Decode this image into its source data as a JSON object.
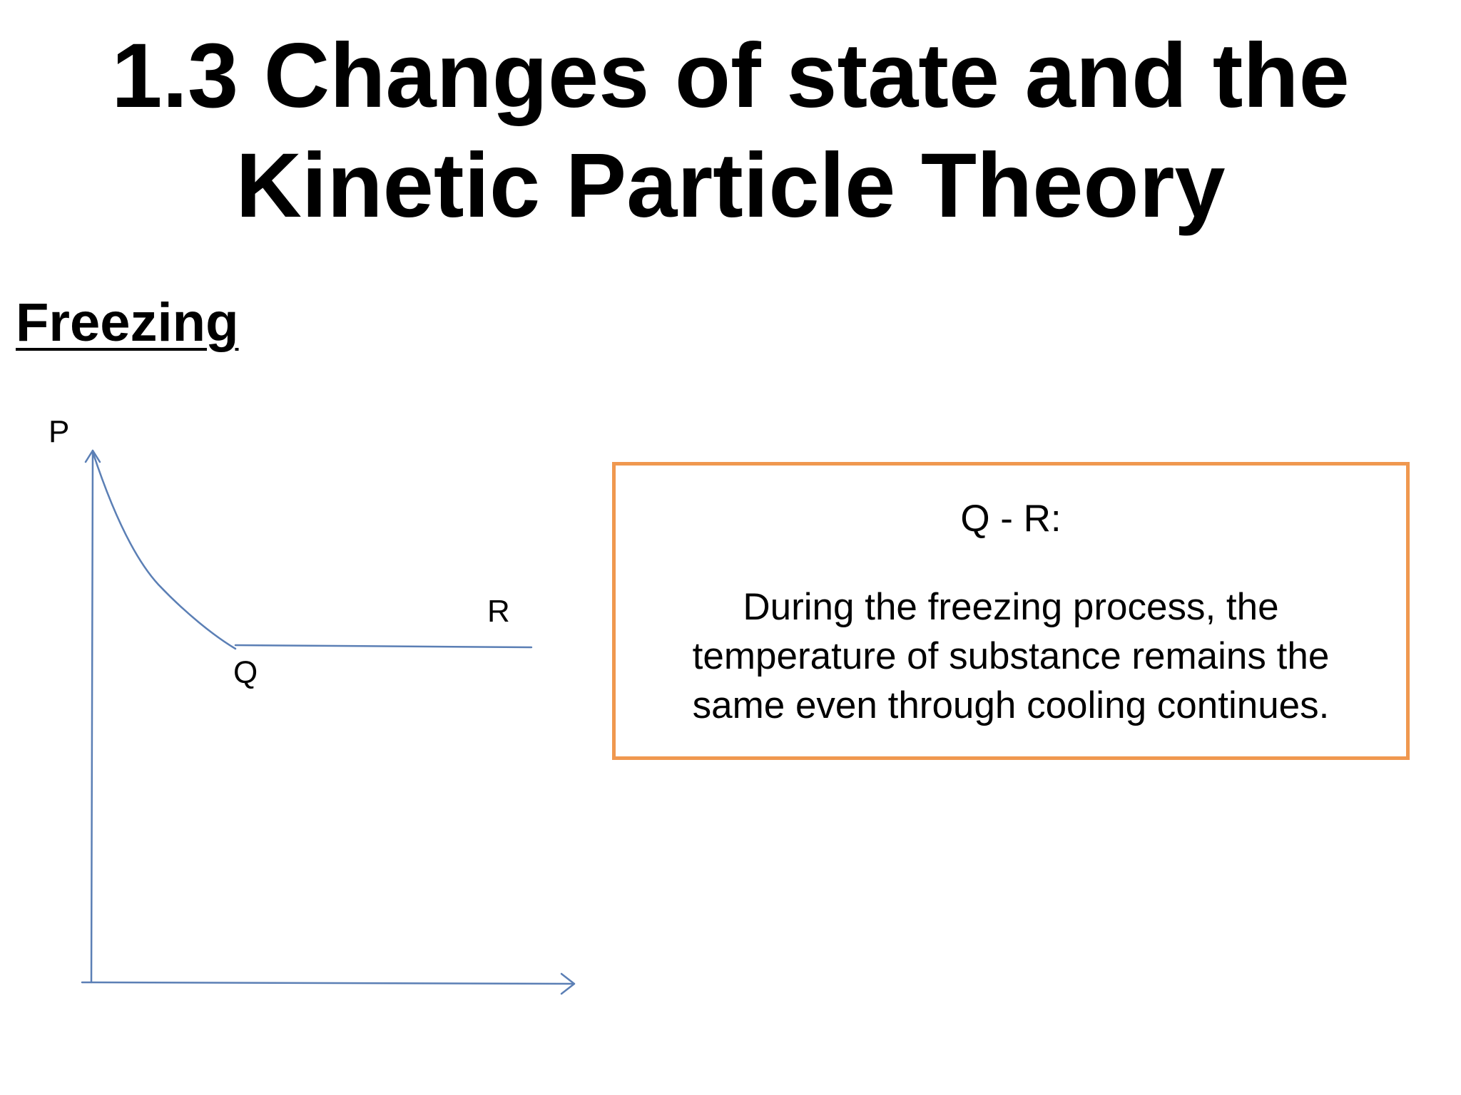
{
  "slide": {
    "title_line1": "1.3  Changes of state and the",
    "title_line2": "Kinetic Particle Theory",
    "section_heading": "Freezing"
  },
  "diagram": {
    "point_labels": {
      "p": "P",
      "q": "Q",
      "r": "R"
    },
    "line_color": "#5b7fb5"
  },
  "info_box": {
    "heading": "Q - R:",
    "body": "During the freezing process, the temperature of substance remains the same even through cooling continues.",
    "border_color": "#f0984f"
  }
}
